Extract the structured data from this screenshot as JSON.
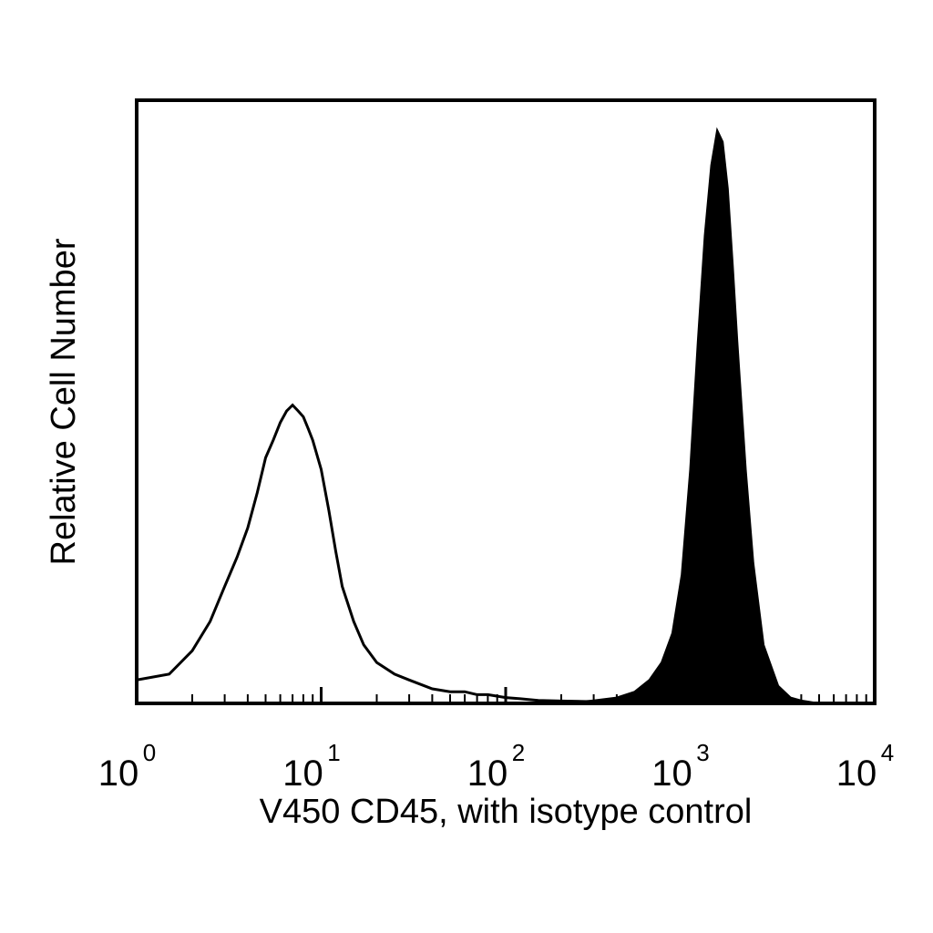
{
  "chart_data": {
    "type": "area",
    "title": "",
    "xlabel": "V450 CD45, with isotype control",
    "ylabel": "Relative Cell Number",
    "xscale": "log",
    "xlim": [
      1,
      10000
    ],
    "ylim": [
      0,
      1.0
    ],
    "grid": false,
    "x_ticks": [
      {
        "base": "10",
        "exp": "0"
      },
      {
        "base": "10",
        "exp": "1"
      },
      {
        "base": "10",
        "exp": "2"
      },
      {
        "base": "10",
        "exp": "3"
      },
      {
        "base": "10",
        "exp": "4"
      }
    ],
    "series": [
      {
        "style": "outline",
        "color": "#000000",
        "x": [
          1,
          1.5,
          2,
          2.5,
          3,
          3.5,
          4,
          4.5,
          5,
          5.5,
          6,
          6.5,
          7,
          7.5,
          8,
          8.5,
          9,
          10,
          11,
          12,
          13,
          15,
          17,
          20,
          25,
          30,
          40,
          50,
          60,
          70,
          80,
          100,
          120,
          150,
          200,
          300,
          500,
          700,
          1000,
          2000,
          4000,
          10000
        ],
        "y": [
          0.04,
          0.05,
          0.09,
          0.14,
          0.2,
          0.25,
          0.3,
          0.36,
          0.42,
          0.45,
          0.48,
          0.5,
          0.51,
          0.5,
          0.49,
          0.47,
          0.45,
          0.4,
          0.33,
          0.26,
          0.2,
          0.14,
          0.1,
          0.07,
          0.05,
          0.04,
          0.025,
          0.02,
          0.02,
          0.015,
          0.015,
          0.01,
          0.008,
          0.005,
          0.004,
          0.003,
          0.002,
          0.001,
          0.001,
          0.001,
          0.0,
          0.0
        ]
      },
      {
        "style": "filled",
        "color": "#000000",
        "x": [
          200,
          300,
          400,
          500,
          600,
          700,
          800,
          900,
          1000,
          1100,
          1200,
          1300,
          1400,
          1500,
          1600,
          1700,
          1800,
          2000,
          2200,
          2500,
          3000,
          3500,
          4000,
          5000
        ],
        "y": [
          0.0,
          0.005,
          0.01,
          0.02,
          0.04,
          0.07,
          0.12,
          0.22,
          0.4,
          0.62,
          0.8,
          0.92,
          0.98,
          0.96,
          0.88,
          0.75,
          0.62,
          0.4,
          0.24,
          0.1,
          0.03,
          0.01,
          0.005,
          0.0
        ]
      }
    ]
  }
}
